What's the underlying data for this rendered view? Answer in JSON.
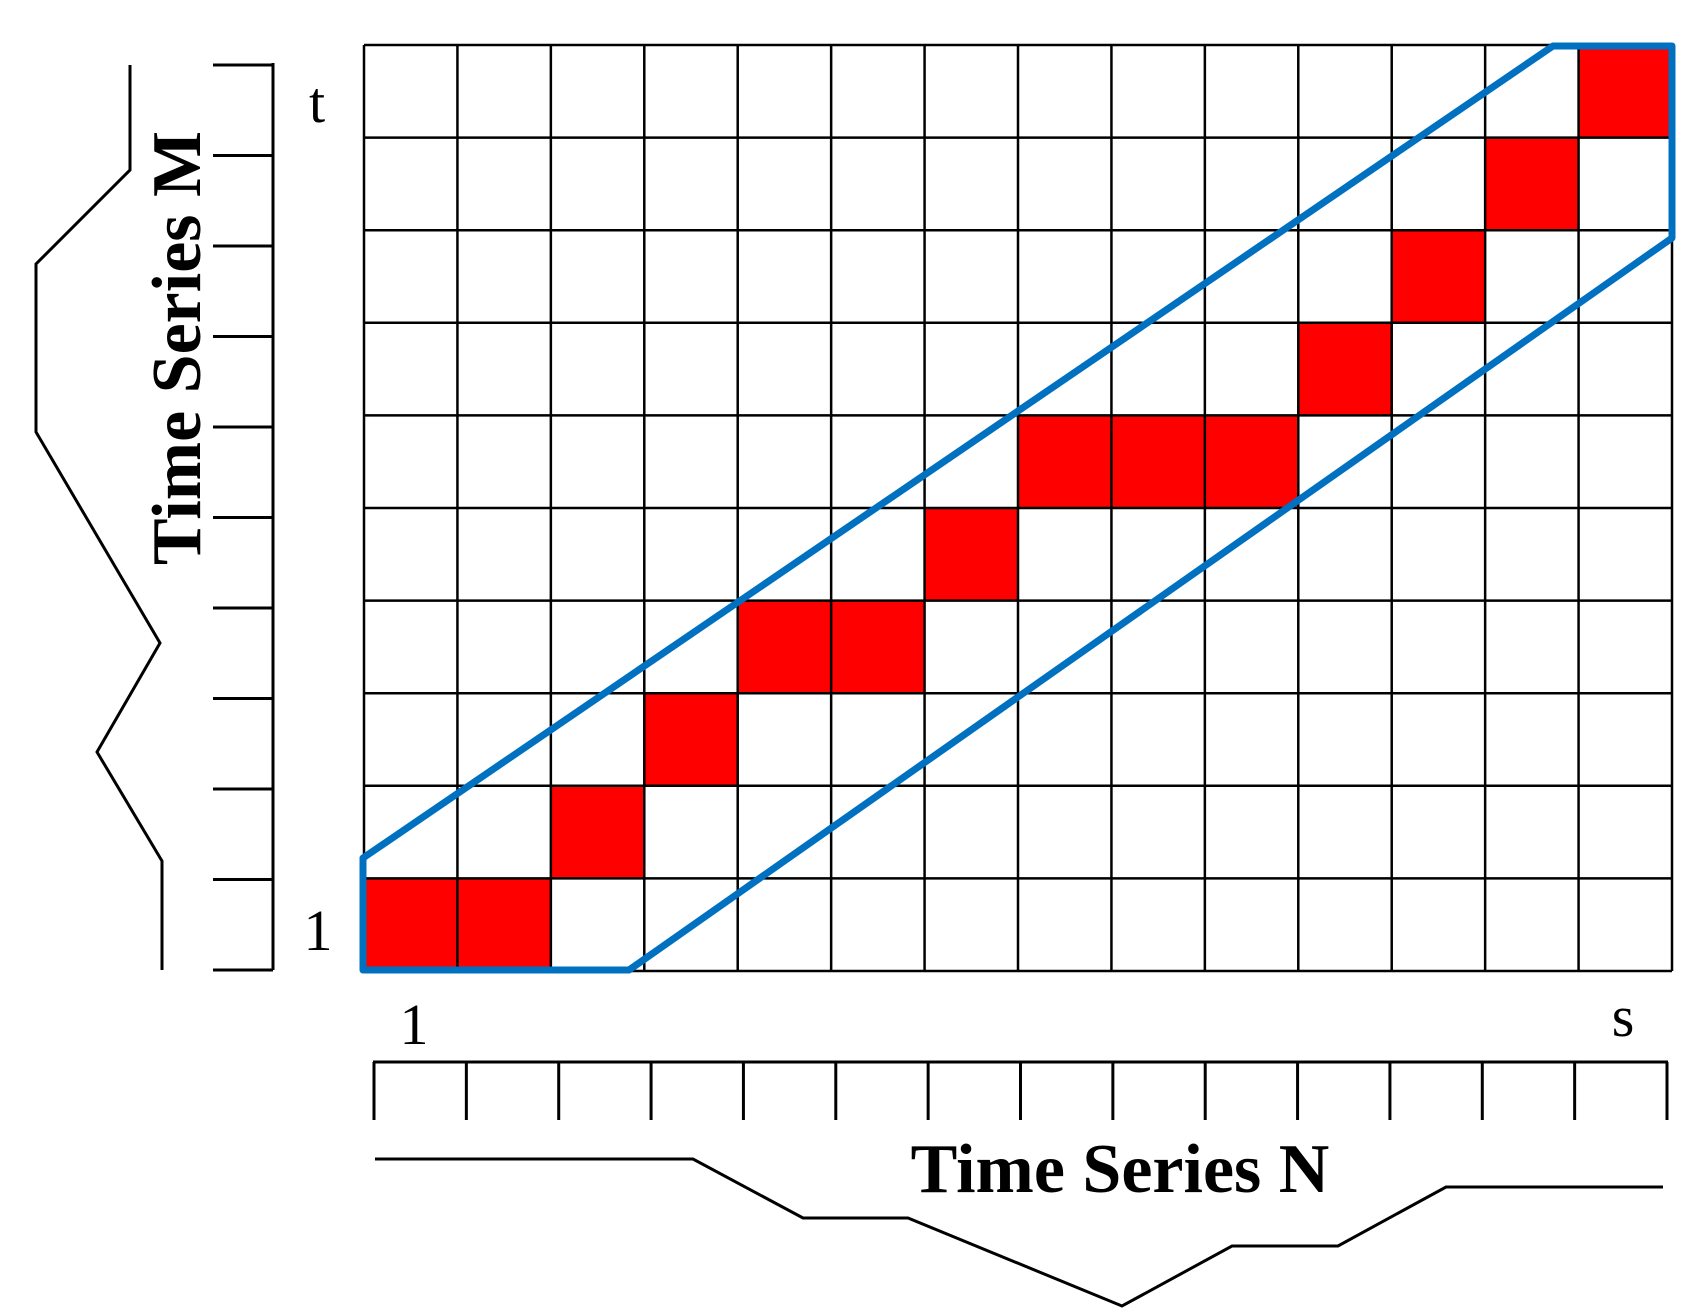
{
  "diagram": {
    "grid": {
      "cols": 14,
      "rows": 10
    },
    "path_cells": [
      [
        1,
        1
      ],
      [
        2,
        1
      ],
      [
        3,
        2
      ],
      [
        4,
        3
      ],
      [
        5,
        4
      ],
      [
        6,
        4
      ],
      [
        7,
        5
      ],
      [
        8,
        6
      ],
      [
        9,
        6
      ],
      [
        10,
        6
      ],
      [
        11,
        7
      ],
      [
        12,
        8
      ],
      [
        13,
        9
      ],
      [
        14,
        10
      ]
    ],
    "colors": {
      "path_fill": "#ff0000",
      "window_stroke": "#0070c0",
      "grid_stroke": "#000000",
      "series_stroke": "#000000"
    },
    "x_axis": {
      "title": "Time Series N",
      "start_label": "1",
      "end_label": "s"
    },
    "y_axis": {
      "title": "Time Series M",
      "start_label": "1",
      "end_label": "t"
    }
  }
}
